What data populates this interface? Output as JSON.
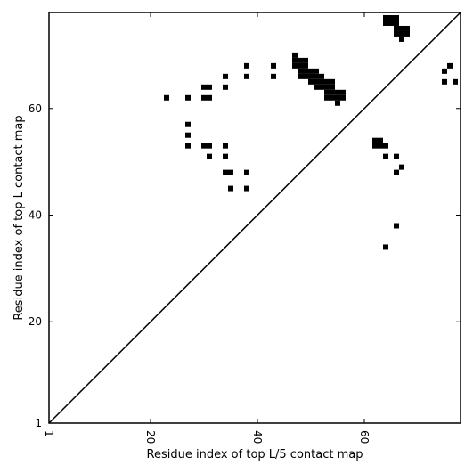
{
  "chart_data": {
    "type": "scatter",
    "title": "",
    "xlabel": "Residue index of top L/5 contact map",
    "ylabel": "Residue index of top L contact map",
    "xlim": [
      1,
      78
    ],
    "ylim": [
      1,
      78
    ],
    "xticks": [
      1,
      20,
      40,
      60
    ],
    "yticks": [
      1,
      20,
      40,
      60
    ],
    "grid": false,
    "diagonal_line": true,
    "marker": "square",
    "marker_color": "#000000",
    "series": [
      {
        "points": [
          [
            64,
            77
          ],
          [
            65,
            77
          ],
          [
            66,
            77
          ],
          [
            64,
            76
          ],
          [
            65,
            76
          ],
          [
            66,
            76
          ],
          [
            66,
            75
          ],
          [
            67,
            75
          ],
          [
            68,
            75
          ],
          [
            66,
            74
          ],
          [
            67,
            74
          ],
          [
            68,
            74
          ],
          [
            67,
            73
          ],
          [
            47,
            70
          ],
          [
            47,
            69
          ],
          [
            48,
            69
          ],
          [
            49,
            69
          ],
          [
            47,
            68
          ],
          [
            48,
            68
          ],
          [
            49,
            68
          ],
          [
            48,
            67
          ],
          [
            49,
            67
          ],
          [
            50,
            67
          ],
          [
            51,
            67
          ],
          [
            48,
            66
          ],
          [
            49,
            66
          ],
          [
            50,
            66
          ],
          [
            51,
            66
          ],
          [
            52,
            66
          ],
          [
            50,
            65
          ],
          [
            51,
            65
          ],
          [
            52,
            65
          ],
          [
            53,
            65
          ],
          [
            54,
            65
          ],
          [
            51,
            64
          ],
          [
            52,
            64
          ],
          [
            53,
            64
          ],
          [
            54,
            64
          ],
          [
            53,
            63
          ],
          [
            54,
            63
          ],
          [
            55,
            63
          ],
          [
            56,
            63
          ],
          [
            53,
            62
          ],
          [
            54,
            62
          ],
          [
            55,
            62
          ],
          [
            56,
            62
          ],
          [
            55,
            61
          ],
          [
            38,
            68
          ],
          [
            43,
            68
          ],
          [
            38,
            66
          ],
          [
            43,
            66
          ],
          [
            34,
            66
          ],
          [
            30,
            64
          ],
          [
            31,
            64
          ],
          [
            34,
            64
          ],
          [
            23,
            62
          ],
          [
            27,
            62
          ],
          [
            30,
            62
          ],
          [
            31,
            62
          ],
          [
            27,
            57
          ],
          [
            27,
            55
          ],
          [
            27,
            53
          ],
          [
            30,
            53
          ],
          [
            31,
            53
          ],
          [
            34,
            53
          ],
          [
            31,
            51
          ],
          [
            34,
            51
          ],
          [
            34,
            48
          ],
          [
            35,
            48
          ],
          [
            38,
            48
          ],
          [
            35,
            45
          ],
          [
            38,
            45
          ],
          [
            62,
            54
          ],
          [
            63,
            54
          ],
          [
            62,
            53
          ],
          [
            63,
            53
          ],
          [
            64,
            53
          ],
          [
            64,
            51
          ],
          [
            66,
            51
          ],
          [
            67,
            49
          ],
          [
            66,
            48
          ],
          [
            66,
            38
          ],
          [
            64,
            34
          ],
          [
            75,
            67
          ],
          [
            76,
            68
          ],
          [
            75,
            65
          ],
          [
            77,
            65
          ]
        ]
      }
    ]
  }
}
